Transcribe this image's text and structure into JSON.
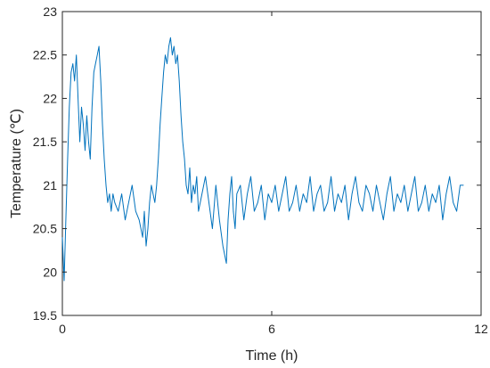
{
  "chart_data": {
    "type": "line",
    "title": "",
    "xlabel": "Time (h)",
    "ylabel": "Temperature (℃)",
    "xlim": [
      0,
      12
    ],
    "ylim": [
      19.5,
      23
    ],
    "xticks": [
      0,
      6,
      12
    ],
    "xtick_labels": [
      "0",
      "6",
      "12"
    ],
    "yticks": [
      19.5,
      20,
      20.5,
      21,
      21.5,
      22,
      22.5,
      23
    ],
    "ytick_labels": [
      "19.5",
      "20",
      "20.5",
      "21",
      "21.5",
      "22",
      "22.5",
      "23"
    ],
    "grid": false,
    "box": true,
    "series_color": "#0072BD",
    "series": [
      {
        "x": [
          0.0,
          0.05,
          0.1,
          0.15,
          0.2,
          0.25,
          0.3,
          0.35,
          0.4,
          0.45,
          0.5,
          0.55,
          0.6,
          0.65,
          0.7,
          0.75,
          0.8,
          0.85,
          0.9,
          0.95,
          1.0,
          1.05,
          1.1,
          1.15,
          1.2,
          1.25,
          1.3,
          1.35,
          1.4,
          1.45,
          1.5,
          1.6,
          1.7,
          1.8,
          1.9,
          2.0,
          2.1,
          2.2,
          2.3,
          2.35,
          2.4,
          2.45,
          2.5,
          2.55,
          2.6,
          2.65,
          2.7,
          2.75,
          2.8,
          2.85,
          2.9,
          2.95,
          3.0,
          3.05,
          3.1,
          3.15,
          3.2,
          3.25,
          3.3,
          3.35,
          3.4,
          3.45,
          3.5,
          3.55,
          3.6,
          3.65,
          3.7,
          3.75,
          3.8,
          3.85,
          3.9,
          4.0,
          4.1,
          4.2,
          4.3,
          4.4,
          4.5,
          4.6,
          4.7,
          4.75,
          4.8,
          4.85,
          4.9,
          4.95,
          5.0,
          5.1,
          5.2,
          5.3,
          5.4,
          5.5,
          5.6,
          5.7,
          5.8,
          5.9,
          6.0,
          6.1,
          6.2,
          6.3,
          6.4,
          6.5,
          6.6,
          6.7,
          6.8,
          6.9,
          7.0,
          7.1,
          7.2,
          7.3,
          7.4,
          7.5,
          7.6,
          7.7,
          7.8,
          7.9,
          8.0,
          8.1,
          8.2,
          8.3,
          8.4,
          8.5,
          8.6,
          8.7,
          8.8,
          8.9,
          9.0,
          9.1,
          9.2,
          9.3,
          9.4,
          9.5,
          9.6,
          9.7,
          9.8,
          9.9,
          10.0,
          10.1,
          10.2,
          10.3,
          10.4,
          10.5,
          10.6,
          10.7,
          10.8,
          10.9,
          11.0,
          11.1,
          11.2,
          11.3,
          11.4,
          11.5
        ],
        "y": [
          20.4,
          19.9,
          20.6,
          21.3,
          21.9,
          22.3,
          22.4,
          22.2,
          22.5,
          22.0,
          21.5,
          21.9,
          21.7,
          21.4,
          21.8,
          21.5,
          21.3,
          21.9,
          22.3,
          22.4,
          22.5,
          22.6,
          22.2,
          21.7,
          21.3,
          21.0,
          20.8,
          20.9,
          20.7,
          20.9,
          20.8,
          20.7,
          20.9,
          20.6,
          20.8,
          21.0,
          20.7,
          20.6,
          20.4,
          20.7,
          20.3,
          20.5,
          20.8,
          21.0,
          20.9,
          20.8,
          21.0,
          21.3,
          21.7,
          22.0,
          22.3,
          22.5,
          22.4,
          22.6,
          22.7,
          22.5,
          22.6,
          22.4,
          22.5,
          22.2,
          21.8,
          21.5,
          21.3,
          21.0,
          20.9,
          21.2,
          20.8,
          21.0,
          20.9,
          21.1,
          20.7,
          20.9,
          21.1,
          20.8,
          20.5,
          21.0,
          20.6,
          20.3,
          20.1,
          20.6,
          20.9,
          21.1,
          20.7,
          20.5,
          20.9,
          21.0,
          20.6,
          20.9,
          21.1,
          20.7,
          20.8,
          21.0,
          20.6,
          20.9,
          20.8,
          21.0,
          20.7,
          20.9,
          21.1,
          20.7,
          20.8,
          21.0,
          20.7,
          20.9,
          20.8,
          21.1,
          20.7,
          20.9,
          21.0,
          20.7,
          20.8,
          21.1,
          20.7,
          20.9,
          20.8,
          21.0,
          20.6,
          20.9,
          21.1,
          20.8,
          20.7,
          21.0,
          20.9,
          20.7,
          21.0,
          20.8,
          20.6,
          20.9,
          21.1,
          20.7,
          20.9,
          20.8,
          21.0,
          20.7,
          20.9,
          21.1,
          20.7,
          20.8,
          21.0,
          20.7,
          20.9,
          20.8,
          21.0,
          20.6,
          20.9,
          21.1,
          20.8,
          20.7,
          21.0,
          21.0
        ]
      }
    ]
  }
}
